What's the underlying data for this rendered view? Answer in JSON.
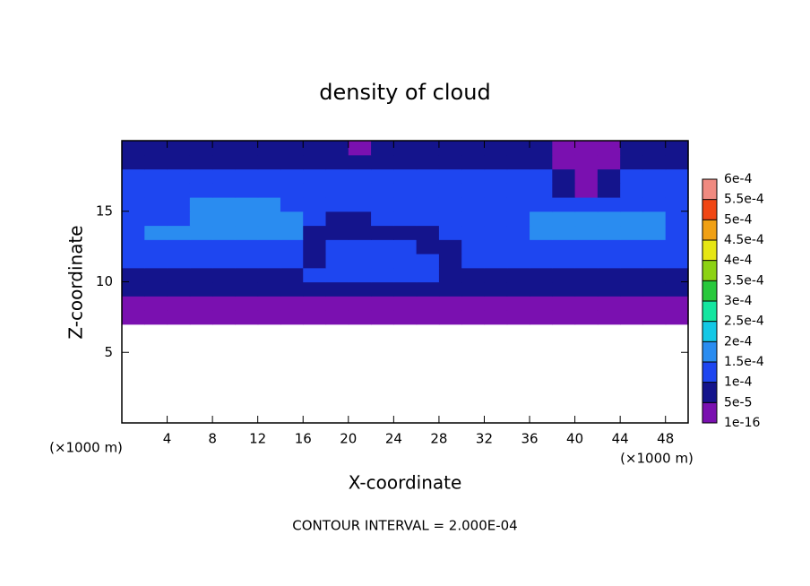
{
  "chart_data": {
    "type": "contour",
    "title": "density of cloud",
    "x_label": "X-coordinate",
    "y_label": "Z-coordinate",
    "axis_unit": "(×1000 m)",
    "annotation": "CONTOUR INTERVAL = 2.000E-04",
    "xlim": [
      0,
      50
    ],
    "ylim": [
      0,
      20
    ],
    "xticks": [
      4,
      8,
      12,
      16,
      20,
      24,
      28,
      32,
      36,
      40,
      44,
      48
    ],
    "yticks": [
      5,
      10,
      15
    ],
    "x": [
      1,
      3,
      5,
      7,
      9,
      11,
      13,
      15,
      17,
      19,
      21,
      23,
      25,
      27,
      29,
      31,
      33,
      35,
      37,
      39,
      41,
      43,
      45,
      47,
      49
    ],
    "y": [
      7.5,
      8.5,
      9.5,
      10.5,
      11.5,
      12.5,
      13.5,
      14.5,
      15.5,
      16.5,
      17.5,
      18.5,
      19.5
    ],
    "z": [
      [
        2e-05,
        2e-05,
        2e-05,
        2e-05,
        2e-05,
        2e-05,
        2e-05,
        2e-05,
        2e-05,
        2e-05,
        2e-05,
        2e-05,
        2e-05,
        2e-05,
        2e-05,
        2e-05,
        2e-05,
        2e-05,
        2e-05,
        2e-05,
        2e-05,
        2e-05,
        2e-05,
        2e-05,
        2e-05
      ],
      [
        4e-05,
        4e-05,
        4e-05,
        4e-05,
        4e-05,
        4e-05,
        4e-05,
        4e-05,
        4e-05,
        4e-05,
        4e-05,
        4e-05,
        4e-05,
        4e-05,
        4e-05,
        2e-05,
        4e-05,
        4e-05,
        4e-05,
        4e-05,
        4e-05,
        4e-05,
        4e-05,
        4e-05,
        4e-05
      ],
      [
        7e-05,
        7e-05,
        7e-05,
        7e-05,
        7e-05,
        7e-05,
        7e-05,
        7e-05,
        7e-05,
        7e-05,
        7e-05,
        7e-05,
        7e-05,
        7e-05,
        6e-05,
        6e-05,
        7e-05,
        7e-05,
        7e-05,
        7e-05,
        7e-05,
        7e-05,
        7e-05,
        7e-05,
        7e-05
      ],
      [
        9e-05,
        9e-05,
        9e-05,
        9e-05,
        9e-05,
        9e-05,
        9e-05,
        9e-05,
        0.00011,
        0.00011,
        0.00011,
        0.00011,
        0.00011,
        0.00011,
        6e-05,
        9e-05,
        9e-05,
        9e-05,
        9e-05,
        9e-05,
        9e-05,
        9e-05,
        9e-05,
        9e-05,
        9e-05
      ],
      [
        0.00011,
        0.00011,
        0.00011,
        0.00011,
        0.00011,
        0.00011,
        0.00011,
        0.00011,
        7e-05,
        0.00012,
        0.00012,
        0.00012,
        0.00012,
        0.00012,
        6e-05,
        0.00011,
        0.00011,
        0.00011,
        0.00011,
        0.00011,
        0.00011,
        0.00011,
        0.00011,
        0.00011,
        0.00011
      ],
      [
        0.00012,
        0.00012,
        0.00012,
        0.00012,
        0.00012,
        0.00012,
        0.00012,
        0.00012,
        7e-05,
        0.00013,
        0.00013,
        0.00013,
        0.00013,
        7e-05,
        7e-05,
        0.00012,
        0.00012,
        0.00012,
        0.00012,
        0.00012,
        0.00012,
        0.00012,
        0.00012,
        0.00012,
        0.00012
      ],
      [
        0.00013,
        0.00015,
        0.00015,
        0.00015,
        0.00015,
        0.00015,
        0.00015,
        0.00015,
        9e-05,
        6e-05,
        6e-05,
        6e-05,
        6e-05,
        6e-05,
        0.00011,
        0.00011,
        0.00011,
        0.00014,
        0.00015,
        0.00015,
        0.00015,
        0.00015,
        0.00015,
        0.00015,
        0.00014
      ],
      [
        0.00013,
        0.00013,
        0.00013,
        0.00016,
        0.00016,
        0.00016,
        0.00016,
        0.00016,
        0.00011,
        8e-05,
        8e-05,
        0.00012,
        0.00012,
        0.00012,
        0.00012,
        0.00012,
        0.00012,
        0.00012,
        0.00016,
        0.00016,
        0.00016,
        0.00016,
        0.00016,
        0.00016,
        0.00014
      ],
      [
        0.00013,
        0.00013,
        0.00013,
        0.00015,
        0.00015,
        0.00015,
        0.00015,
        0.00013,
        0.00011,
        0.00013,
        0.00013,
        0.00013,
        0.00013,
        0.00013,
        0.00013,
        0.00013,
        0.00013,
        0.00013,
        0.00013,
        0.00013,
        0.00013,
        0.00013,
        0.00013,
        0.00013,
        0.00013
      ],
      [
        0.00012,
        0.00012,
        0.00012,
        0.00012,
        0.00012,
        0.00012,
        0.00012,
        0.00012,
        0.00012,
        0.00012,
        0.00012,
        0.00012,
        0.00012,
        0.00012,
        0.00012,
        0.00012,
        0.00012,
        0.00012,
        0.00012,
        8e-05,
        3e-05,
        8e-05,
        0.00012,
        0.00012,
        0.00012
      ],
      [
        0.0001,
        0.0001,
        0.0001,
        0.0001,
        0.0001,
        0.0001,
        0.0001,
        0.0001,
        0.0001,
        0.0001,
        0.0001,
        0.0001,
        0.0001,
        0.0001,
        0.0001,
        0.0001,
        0.0001,
        0.0001,
        0.0001,
        6e-05,
        2e-05,
        5e-05,
        0.0001,
        0.0001,
        0.0001
      ],
      [
        9e-05,
        9e-05,
        9e-05,
        9e-05,
        9e-05,
        9e-05,
        9e-05,
        9e-05,
        9e-05,
        9e-05,
        5e-05,
        9e-05,
        9e-05,
        9e-05,
        9e-05,
        9e-05,
        9e-05,
        9e-05,
        9e-05,
        3e-05,
        2e-05,
        3e-05,
        9e-05,
        9e-05,
        9e-05
      ],
      [
        6e-05,
        6e-05,
        6e-05,
        6e-05,
        6e-05,
        6e-05,
        6e-05,
        6e-05,
        6e-05,
        6e-05,
        4e-05,
        6e-05,
        6e-05,
        6e-05,
        6e-05,
        6e-05,
        6e-05,
        6e-05,
        6e-05,
        2e-05,
        2e-05,
        2e-05,
        6e-05,
        6e-05,
        6e-05
      ]
    ],
    "colorbar": {
      "levels": [
        {
          "value": 1e-16,
          "label": "1e-16"
        },
        {
          "value": 5e-05,
          "label": "5e-5"
        },
        {
          "value": 0.0001,
          "label": "1e-4"
        },
        {
          "value": 0.00015,
          "label": "1.5e-4"
        },
        {
          "value": 0.0002,
          "label": "2e-4"
        },
        {
          "value": 0.00025,
          "label": "2.5e-4"
        },
        {
          "value": 0.0003,
          "label": "3e-4"
        },
        {
          "value": 0.00035,
          "label": "3.5e-4"
        },
        {
          "value": 0.0004,
          "label": "4e-4"
        },
        {
          "value": 0.00045,
          "label": "4.5e-4"
        },
        {
          "value": 0.0005,
          "label": "5e-4"
        },
        {
          "value": 0.00055,
          "label": "5.5e-4"
        },
        {
          "value": 0.0006,
          "label": "6e-4"
        }
      ],
      "colors": [
        "#7a10b0",
        "#14148c",
        "#1e46f0",
        "#2a8cf0",
        "#14c8e6",
        "#14e6a0",
        "#28c83c",
        "#8cd214",
        "#e6e614",
        "#f0a014",
        "#f04614",
        "#f08a80"
      ]
    }
  }
}
